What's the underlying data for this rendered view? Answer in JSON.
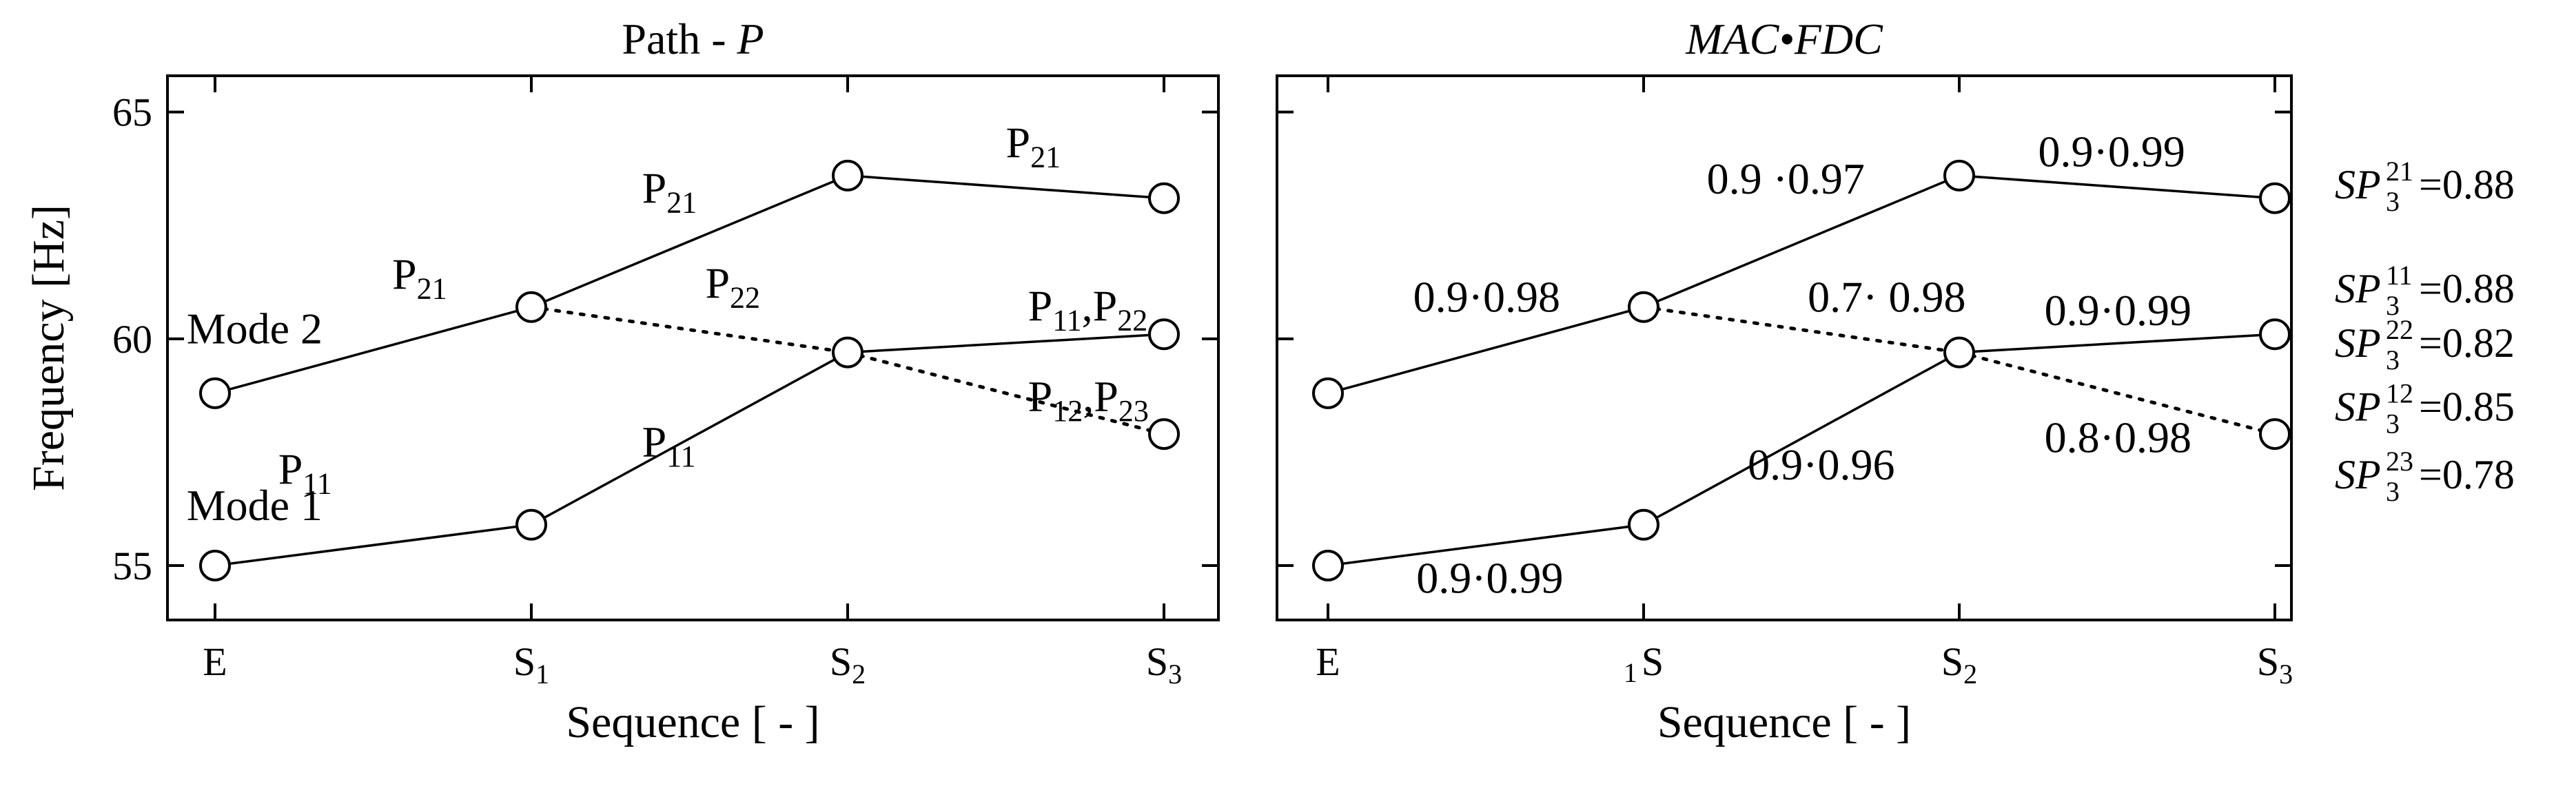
{
  "chart_data": [
    {
      "type": "line",
      "title": "Path - ",
      "title_italic": "P",
      "xlabel": "Sequence [ - ]",
      "ylabel": "Frequency [Hz]",
      "ylim": [
        53.8,
        65.8
      ],
      "yticks": [
        55,
        60,
        65
      ],
      "categories": [
        {
          "main": "E",
          "sub": ""
        },
        {
          "main": "S",
          "sub": "1"
        },
        {
          "main": "S",
          "sub": "2"
        },
        {
          "main": "S",
          "sub": "3"
        }
      ],
      "series": [
        {
          "name": "Mode 1",
          "values": [
            55.0,
            55.9,
            59.7,
            60.1
          ]
        },
        {
          "name": "Mode 2",
          "values": [
            58.8,
            60.7,
            63.6,
            63.1
          ]
        }
      ],
      "edges": [
        {
          "from": [
            0,
            55.0
          ],
          "to": [
            1,
            55.9
          ],
          "style": "solid"
        },
        {
          "from": [
            1,
            55.9
          ],
          "to": [
            2,
            59.7
          ],
          "style": "solid"
        },
        {
          "from": [
            2,
            59.7
          ],
          "to": [
            3,
            60.1
          ],
          "style": "solid"
        },
        {
          "from": [
            0,
            58.8
          ],
          "to": [
            1,
            60.7
          ],
          "style": "solid"
        },
        {
          "from": [
            1,
            60.7
          ],
          "to": [
            2,
            63.6
          ],
          "style": "solid"
        },
        {
          "from": [
            2,
            63.6
          ],
          "to": [
            3,
            63.1
          ],
          "style": "solid"
        },
        {
          "from": [
            1,
            60.7
          ],
          "to": [
            2,
            59.7
          ],
          "style": "dotted"
        },
        {
          "from": [
            2,
            59.7
          ],
          "to": [
            3,
            57.9
          ],
          "style": "dotted"
        }
      ],
      "markers": [
        [
          0,
          55.0
        ],
        [
          1,
          55.9
        ],
        [
          2,
          59.7
        ],
        [
          3,
          60.1
        ],
        [
          0,
          58.8
        ],
        [
          1,
          60.7
        ],
        [
          2,
          63.6
        ],
        [
          3,
          63.1
        ],
        [
          3,
          57.9
        ]
      ],
      "annotations": [
        {
          "at": [
            0.2,
            56.8
          ],
          "parts": [
            [
              "P",
              "n"
            ],
            [
              "11",
              "sub"
            ]
          ]
        },
        {
          "at": [
            0.56,
            61.1
          ],
          "parts": [
            [
              "P",
              "n"
            ],
            [
              "21",
              "sub"
            ]
          ]
        },
        {
          "at": [
            1.35,
            63.0
          ],
          "parts": [
            [
              "P",
              "n"
            ],
            [
              "21",
              "sub"
            ]
          ]
        },
        {
          "at": [
            2.5,
            64.0
          ],
          "parts": [
            [
              "P",
              "n"
            ],
            [
              "21",
              "sub"
            ]
          ]
        },
        {
          "at": [
            1.55,
            60.9
          ],
          "parts": [
            [
              "P",
              "n"
            ],
            [
              "22",
              "sub"
            ]
          ]
        },
        {
          "at": [
            2.57,
            60.4
          ],
          "parts": [
            [
              "P",
              "n"
            ],
            [
              "11",
              "sub"
            ],
            [
              ",P",
              "n"
            ],
            [
              "22",
              "sub"
            ]
          ]
        },
        {
          "at": [
            1.35,
            57.4
          ],
          "parts": [
            [
              "P",
              "n"
            ],
            [
              "11",
              "sub"
            ]
          ]
        },
        {
          "at": [
            2.57,
            58.4
          ],
          "parts": [
            [
              "P",
              "n"
            ],
            [
              "12",
              "sub"
            ],
            [
              ",P",
              "n"
            ],
            [
              "23",
              "sub"
            ]
          ]
        },
        {
          "at": [
            -0.09,
            56.0
          ],
          "parts": [
            [
              "Mode 1",
              "n"
            ]
          ]
        },
        {
          "at": [
            -0.09,
            59.9
          ],
          "parts": [
            [
              "Mode  2",
              "n"
            ]
          ]
        }
      ]
    },
    {
      "type": "line",
      "title": "MAC•FDC",
      "title_italic": "",
      "xlabel": "Sequence [ - ]",
      "ylabel": "",
      "ylim": [
        53.8,
        65.8
      ],
      "yticks": [
        55,
        60,
        65
      ],
      "categories": [
        {
          "main": "E",
          "sub": ""
        },
        {
          "main": "S",
          "sub": "1",
          "sub_first": true
        },
        {
          "main": "S",
          "sub": "2"
        },
        {
          "main": "S",
          "sub": "3"
        }
      ],
      "series": [
        {
          "name": "",
          "values": [
            55.0,
            55.9,
            59.7,
            60.1
          ]
        },
        {
          "name": "",
          "values": [
            58.8,
            60.7,
            63.6,
            63.1
          ]
        }
      ],
      "edges": [
        {
          "from": [
            0,
            55.0
          ],
          "to": [
            1,
            55.9
          ],
          "style": "solid"
        },
        {
          "from": [
            1,
            55.9
          ],
          "to": [
            2,
            59.7
          ],
          "style": "solid"
        },
        {
          "from": [
            2,
            59.7
          ],
          "to": [
            3,
            60.1
          ],
          "style": "solid"
        },
        {
          "from": [
            0,
            58.8
          ],
          "to": [
            1,
            60.7
          ],
          "style": "solid"
        },
        {
          "from": [
            1,
            60.7
          ],
          "to": [
            2,
            63.6
          ],
          "style": "solid"
        },
        {
          "from": [
            2,
            63.6
          ],
          "to": [
            3,
            63.1
          ],
          "style": "solid"
        },
        {
          "from": [
            1,
            60.7
          ],
          "to": [
            2,
            59.7
          ],
          "style": "dotted"
        },
        {
          "from": [
            2,
            59.7
          ],
          "to": [
            3,
            57.9
          ],
          "style": "dotted"
        }
      ],
      "markers": [
        [
          0,
          55.0
        ],
        [
          1,
          55.9
        ],
        [
          2,
          59.7
        ],
        [
          3,
          60.1
        ],
        [
          0,
          58.8
        ],
        [
          1,
          60.7
        ],
        [
          2,
          63.6
        ],
        [
          3,
          63.1
        ],
        [
          3,
          57.9
        ]
      ],
      "annotations": [
        {
          "at": [
            0.28,
            54.4
          ],
          "parts": [
            [
              "0.9·0.99",
              "n"
            ]
          ]
        },
        {
          "at": [
            0.27,
            60.6
          ],
          "parts": [
            [
              "0.9·0.98",
              "n"
            ]
          ]
        },
        {
          "at": [
            1.2,
            63.2
          ],
          "parts": [
            [
              "0.9 ·0.97",
              "n"
            ]
          ]
        },
        {
          "at": [
            2.25,
            63.8
          ],
          "parts": [
            [
              "0.9·0.99",
              "n"
            ]
          ]
        },
        {
          "at": [
            1.52,
            60.6
          ],
          "parts": [
            [
              "0.7· 0.98",
              "n"
            ]
          ]
        },
        {
          "at": [
            2.27,
            60.3
          ],
          "parts": [
            [
              "0.9·0.99",
              "n"
            ]
          ]
        },
        {
          "at": [
            1.33,
            56.9
          ],
          "parts": [
            [
              "0.9·0.96",
              "n"
            ]
          ]
        },
        {
          "at": [
            2.27,
            57.5
          ],
          "parts": [
            [
              "0.8·0.98",
              "n"
            ]
          ]
        }
      ]
    }
  ],
  "sp_labels": [
    {
      "name": "SP",
      "sub": "3",
      "sup": "21",
      "value": "=0.88",
      "y": 63.1
    },
    {
      "name": "SP",
      "sub": "3",
      "sup": "11",
      "value": "=0.88",
      "y": 60.8
    },
    {
      "name": "SP",
      "sub": "3",
      "sup": "22",
      "value": "=0.82",
      "y": 59.6
    },
    {
      "name": "SP",
      "sub": "3",
      "sup": "12",
      "value": "=0.85",
      "y": 58.2
    },
    {
      "name": "SP",
      "sub": "3",
      "sup": "23",
      "value": "=0.78",
      "y": 56.7
    }
  ]
}
